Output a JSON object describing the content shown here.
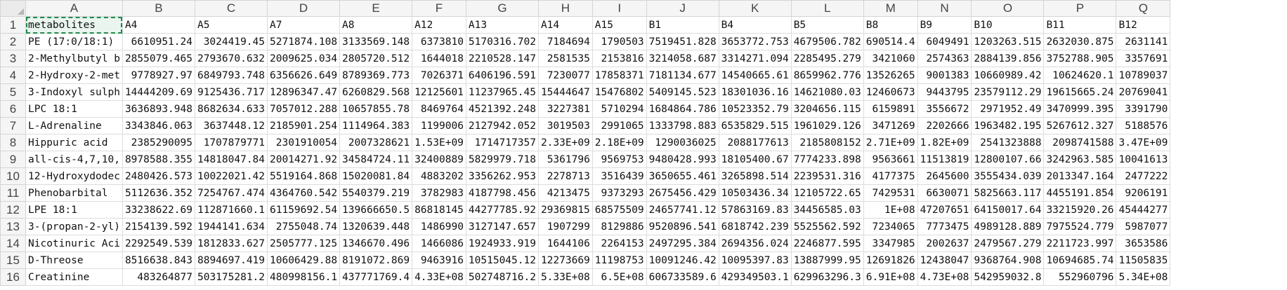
{
  "columns": [
    "A",
    "B",
    "C",
    "D",
    "E",
    "F",
    "G",
    "H",
    "I",
    "J",
    "K",
    "L",
    "M",
    "N",
    "O",
    "P",
    "Q"
  ],
  "rows": [
    {
      "n": "1",
      "c": [
        "metabolites",
        "A4",
        "A5",
        "A7",
        "A8",
        "A12",
        "A13",
        "A14",
        "A15",
        "B1",
        "B4",
        "B5",
        "B8",
        "B9",
        "B10",
        "B11",
        "B12"
      ]
    },
    {
      "n": "2",
      "c": [
        "PE (17:0/18:1)",
        "6610951.24",
        "3024419.45",
        "5271874.108",
        "3133569.148",
        "6373810",
        "5170316.702",
        "7184694",
        "1790503",
        "7519451.828",
        "3653772.753",
        "4679506.782",
        "690514.4",
        "6049491",
        "1203263.515",
        "2632030.875",
        "2631141"
      ]
    },
    {
      "n": "3",
      "c": [
        "2-Methylbutyl b",
        "2855079.465",
        "2793670.632",
        "2009625.034",
        "2805720.512",
        "1644018",
        "2210528.147",
        "2581535",
        "2153816",
        "3214058.687",
        "3314271.094",
        "2285495.279",
        "3421060",
        "2574363",
        "2884139.856",
        "3752788.905",
        "3357691"
      ]
    },
    {
      "n": "4",
      "c": [
        "2-Hydroxy-2-met",
        "9778927.97",
        "6849793.748",
        "6356626.649",
        "8789369.773",
        "7026371",
        "6406196.591",
        "7230077",
        "17858371",
        "7181134.677",
        "14540665.61",
        "8659962.776",
        "13526265",
        "9001383",
        "10660989.42",
        "10624620.1",
        "10789037"
      ]
    },
    {
      "n": "5",
      "c": [
        "3-Indoxyl sulph",
        "14444209.69",
        "9125436.717",
        "12896347.47",
        "6260829.568",
        "12125601",
        "11237965.45",
        "15444647",
        "15476802",
        "5409145.523",
        "18301036.16",
        "14621080.03",
        "12460673",
        "9443795",
        "23579112.29",
        "19615665.24",
        "20769041"
      ]
    },
    {
      "n": "6",
      "c": [
        "LPC 18:1",
        "3636893.948",
        "8682634.633",
        "7057012.288",
        "10657855.78",
        "8469764",
        "4521392.248",
        "3227381",
        "5710294",
        "1684864.786",
        "10523352.79",
        "3204656.115",
        "6159891",
        "3556672",
        "2971952.49",
        "3470999.395",
        "3391790"
      ]
    },
    {
      "n": "7",
      "c": [
        "L-Adrenaline",
        "3343846.063",
        "3637448.12",
        "2185901.254",
        "1114964.383",
        "1199006",
        "2127942.052",
        "3019503",
        "2991065",
        "1333798.883",
        "6535829.515",
        "1961029.126",
        "3471269",
        "2202666",
        "1963482.195",
        "5267612.327",
        "5188576"
      ]
    },
    {
      "n": "8",
      "c": [
        "Hippuric acid",
        "2385290095",
        "1707879771",
        "2301910054",
        "2007328621",
        "1.53E+09",
        "1714717357",
        "2.33E+09",
        "2.18E+09",
        "1290036025",
        "2088177613",
        "2185808152",
        "2.71E+09",
        "1.82E+09",
        "2541323888",
        "2098741588",
        "3.47E+09"
      ]
    },
    {
      "n": "9",
      "c": [
        "all-cis-4,7,10,",
        "8978588.355",
        "14818047.84",
        "20014271.92",
        "34584724.11",
        "32400889",
        "5829979.718",
        "5361796",
        "9569753",
        "9480428.993",
        "18105400.67",
        "7774233.898",
        "9563661",
        "11513819",
        "12800107.66",
        "3242963.585",
        "10041613"
      ]
    },
    {
      "n": "10",
      "c": [
        "12-Hydroxydodec",
        "2480426.573",
        "10022021.42",
        "5519164.868",
        "15020081.84",
        "4883202",
        "3356262.953",
        "2278713",
        "3516439",
        "3650655.461",
        "3265898.514",
        "2239531.316",
        "4177375",
        "2645600",
        "3555434.039",
        "2013347.164",
        "2477222"
      ]
    },
    {
      "n": "11",
      "c": [
        "Phenobarbital",
        "5112636.352",
        "7254767.474",
        "4364760.542",
        "5540379.219",
        "3782983",
        "4187798.456",
        "4213475",
        "9373293",
        "2675456.429",
        "10503436.34",
        "12105722.65",
        "7429531",
        "6630071",
        "5825663.117",
        "4455191.854",
        "9206191"
      ]
    },
    {
      "n": "12",
      "c": [
        "LPE 18:1",
        "33238622.69",
        "112871660.1",
        "61159692.54",
        "139666650.5",
        "86818145",
        "44277785.92",
        "29369815",
        "68575509",
        "24657741.12",
        "57863169.83",
        "34456585.03",
        "1E+08",
        "47207651",
        "64150017.64",
        "33215920.26",
        "45444277"
      ]
    },
    {
      "n": "13",
      "c": [
        "3-(propan-2-yl)",
        "2154139.592",
        "1944141.634",
        "2755048.74",
        "1320639.448",
        "1486990",
        "3127147.657",
        "1907299",
        "8129886",
        "9520896.541",
        "6818742.239",
        "5525562.592",
        "7234065",
        "7773475",
        "4989128.889",
        "7975524.779",
        "5987077"
      ]
    },
    {
      "n": "14",
      "c": [
        "Nicotinuric Aci",
        "2292549.539",
        "1812833.627",
        "2505777.125",
        "1346670.496",
        "1466086",
        "1924933.919",
        "1644106",
        "2264153",
        "2497295.384",
        "2694356.024",
        "2246877.595",
        "3347985",
        "2002637",
        "2479567.279",
        "2211723.997",
        "3653586"
      ]
    },
    {
      "n": "15",
      "c": [
        "D-Threose",
        "8516638.843",
        "8894697.419",
        "10606429.88",
        "8191072.869",
        "9463916",
        "10515045.12",
        "12273669",
        "11198753",
        "10091246.42",
        "10095397.83",
        "13887999.95",
        "12691826",
        "12438047",
        "9368764.908",
        "10694685.74",
        "11505835"
      ]
    },
    {
      "n": "16",
      "c": [
        "Creatinine",
        "483264877",
        "503175281.2",
        "480998156.1",
        "437771769.4",
        "4.33E+08",
        "502748716.2",
        "5.33E+08",
        "6.5E+08",
        "606733589.6",
        "429349503.1",
        "629963296.3",
        "6.91E+08",
        "4.73E+08",
        "542959032.8",
        "552960796",
        "5.34E+08"
      ]
    }
  ]
}
